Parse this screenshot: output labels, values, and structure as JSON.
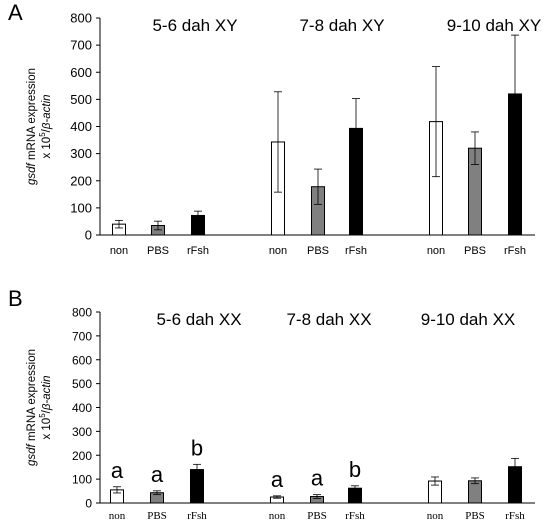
{
  "chart_data": [
    {
      "panel_label": "A",
      "type": "bar",
      "ylabel": {
        "gene": "gsdf",
        "main": " mRNA expression",
        "line2_prefix": "x 10",
        "line2_sup": "5",
        "line2_suffix": "/",
        "ref": "β-actin"
      },
      "ylim": [
        0,
        800
      ],
      "yticks": [
        0,
        100,
        200,
        300,
        400,
        500,
        600,
        700,
        800
      ],
      "groups": [
        {
          "title": "5-6 dah XY",
          "categories": [
            "non",
            "PBS",
            "rFsh"
          ],
          "values": [
            40,
            35,
            72
          ],
          "errors": [
            14,
            16,
            16
          ],
          "letters": [
            "",
            "",
            ""
          ]
        },
        {
          "title": "7-8  dah XY",
          "categories": [
            "non",
            "PBS",
            "rFsh"
          ],
          "values": [
            343,
            178,
            393
          ],
          "errors": [
            185,
            65,
            110
          ],
          "letters": [
            "",
            "",
            ""
          ]
        },
        {
          "title": "9-10 dah XY",
          "categories": [
            "non",
            "PBS",
            "rFsh"
          ],
          "values": [
            418,
            320,
            520
          ],
          "errors": [
            203,
            60,
            217
          ],
          "letters": [
            "",
            "",
            ""
          ]
        }
      ],
      "bar_colors": [
        "#ffffff",
        "#808080",
        "#000000"
      ]
    },
    {
      "panel_label": "B",
      "type": "bar",
      "ylabel": {
        "gene": "gsdf",
        "main": " mRNA expression",
        "line2_prefix": "x 10",
        "line2_sup": "5",
        "line2_suffix": "/",
        "ref": "β-actin"
      },
      "ylim": [
        0,
        800
      ],
      "yticks": [
        0,
        100,
        200,
        300,
        400,
        500,
        600,
        700,
        800
      ],
      "groups": [
        {
          "title": "5-6 dah XX",
          "categories": [
            "non",
            "PBS",
            "rFsh"
          ],
          "values": [
            55,
            43,
            140
          ],
          "errors": [
            13,
            8,
            22
          ],
          "letters": [
            "a",
            "a",
            "b"
          ]
        },
        {
          "title": "7-8  dah XX",
          "categories": [
            "non",
            "PBS",
            "rFsh"
          ],
          "values": [
            25,
            27,
            62
          ],
          "errors": [
            5,
            8,
            10
          ],
          "letters": [
            "a",
            "a",
            "b"
          ]
        },
        {
          "title": "9-10 dah XX",
          "categories": [
            "non",
            "PBS",
            "rFsh"
          ],
          "values": [
            92,
            93,
            152
          ],
          "errors": [
            17,
            12,
            35
          ],
          "letters": [
            "",
            "",
            ""
          ]
        }
      ],
      "bar_colors": [
        "#ffffff",
        "#808080",
        "#000000"
      ]
    }
  ]
}
